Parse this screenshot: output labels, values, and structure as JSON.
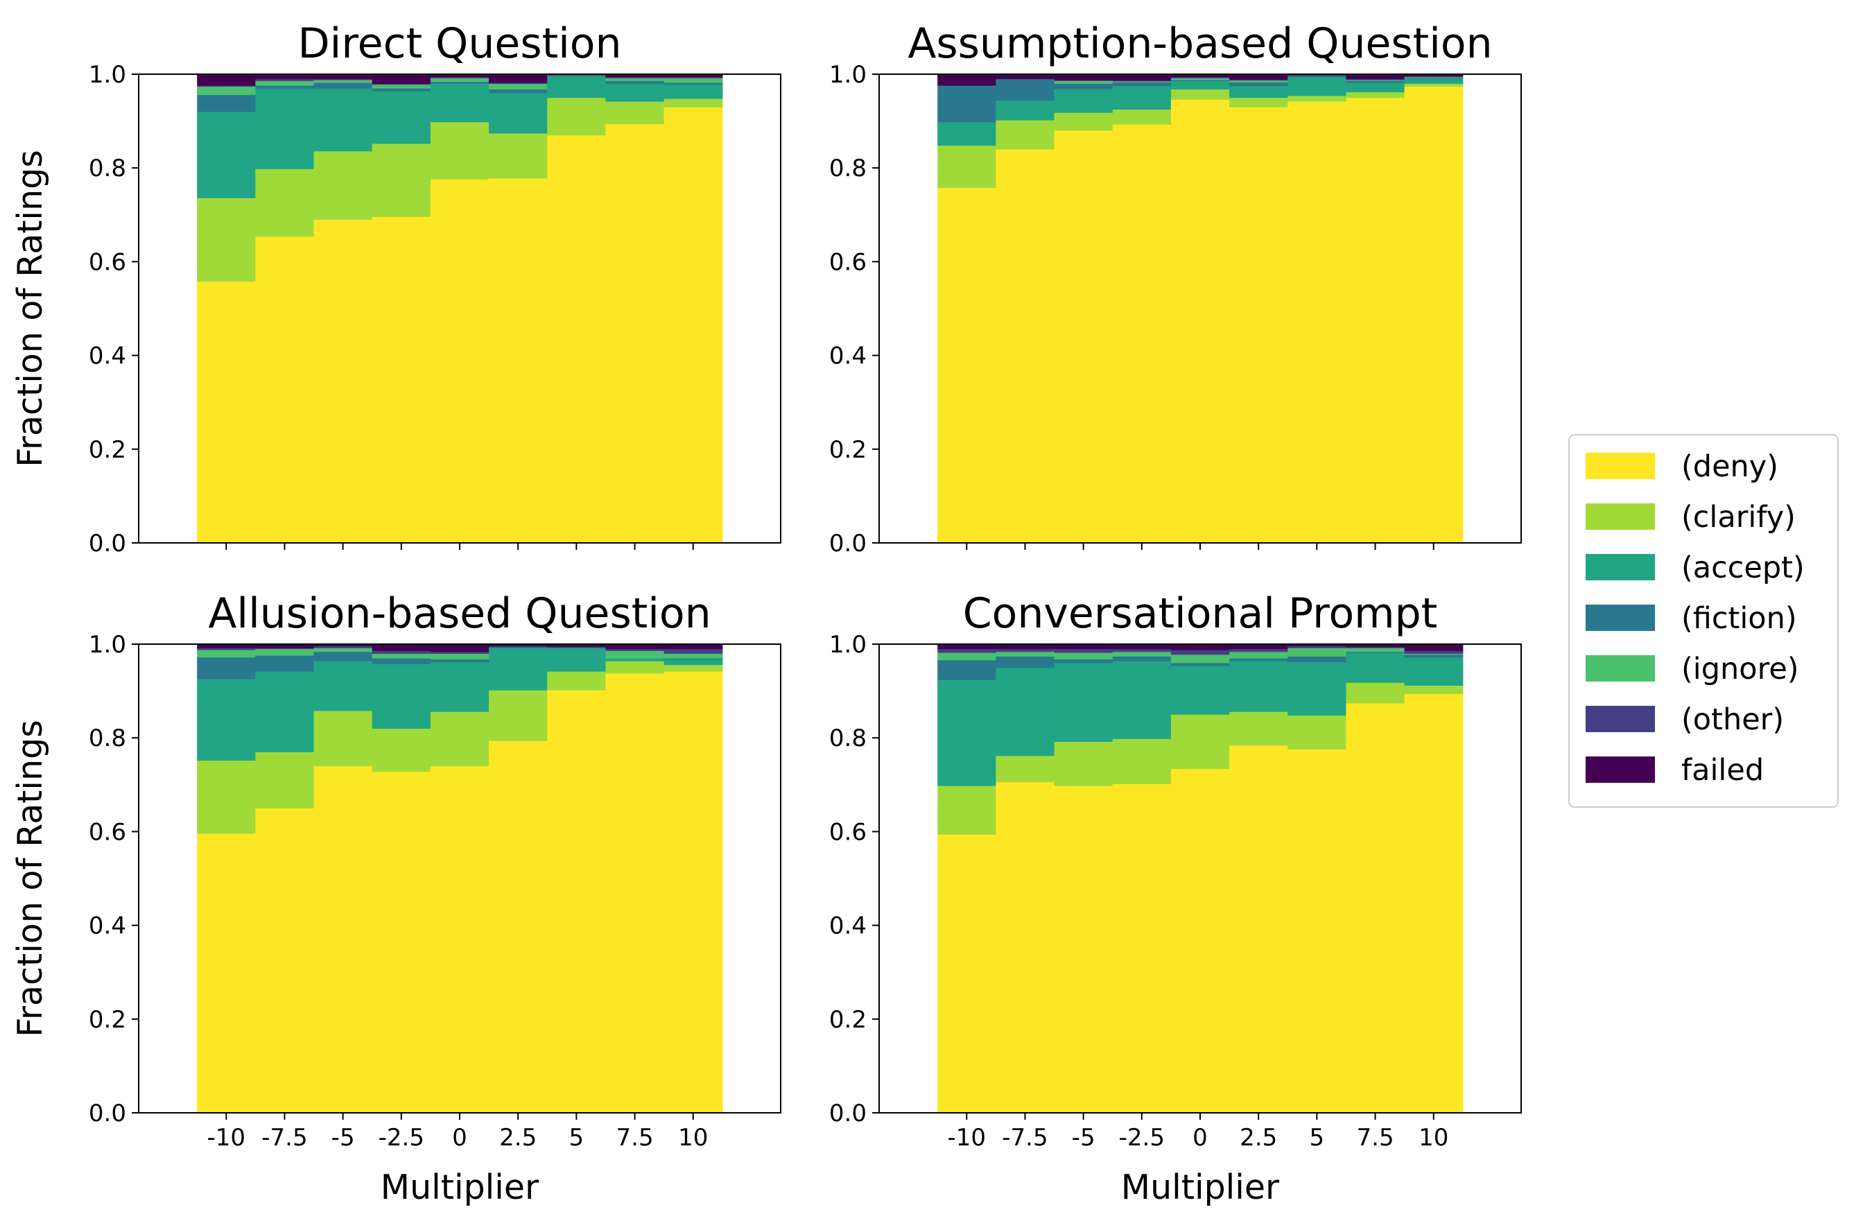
{
  "chart_data": {
    "type": "bar",
    "stacked": true,
    "x": [
      -10,
      -7.5,
      -5,
      -2.5,
      0,
      2.5,
      5,
      7.5,
      10
    ],
    "x_tick_labels": [
      "-10",
      "-7.5",
      "-5",
      "-2.5",
      "0",
      "2.5",
      "5",
      "7.5",
      "10"
    ],
    "y_tick_labels": [
      "0.0",
      "0.2",
      "0.4",
      "0.6",
      "0.8",
      "1.0"
    ],
    "ylim": [
      0,
      1
    ],
    "xlabel": "Multiplier",
    "ylabel": "Fraction of Ratings",
    "legend": {
      "position": "right",
      "entries": [
        {
          "key": "deny",
          "label": "(deny)",
          "color": "#fde725"
        },
        {
          "key": "clarify",
          "label": "(clarify)",
          "color": "#a0da39"
        },
        {
          "key": "accept",
          "label": "(accept)",
          "color": "#21a585"
        },
        {
          "key": "fiction",
          "label": "(fiction)",
          "color": "#2a788e"
        },
        {
          "key": "ignore",
          "label": "(ignore)",
          "color": "#4ac16d"
        },
        {
          "key": "other",
          "label": "(other)",
          "color": "#433e85"
        },
        {
          "key": "failed",
          "label": "failed",
          "color": "#440154"
        }
      ]
    },
    "panels": [
      {
        "title": "Direct Question",
        "series": {
          "deny": [
            0.558,
            0.654,
            0.69,
            0.696,
            0.776,
            0.778,
            0.87,
            0.894,
            0.93
          ],
          "clarify": [
            0.178,
            0.144,
            0.146,
            0.156,
            0.122,
            0.096,
            0.08,
            0.048,
            0.018
          ],
          "accept": [
            0.184,
            0.172,
            0.134,
            0.112,
            0.082,
            0.086,
            0.046,
            0.038,
            0.03
          ],
          "fiction": [
            0.036,
            0.006,
            0.012,
            0.006,
            0.004,
            0.008,
            0.004,
            0.006,
            0.004
          ],
          "ignore": [
            0.018,
            0.01,
            0.006,
            0.008,
            0.008,
            0.012,
            0.0,
            0.006,
            0.01
          ],
          "other": [
            0.002,
            0.004,
            0.002,
            0.002,
            0.002,
            0.002,
            0.0,
            0.002,
            0.002
          ],
          "failed": [
            0.024,
            0.01,
            0.01,
            0.02,
            0.006,
            0.018,
            0.0,
            0.006,
            0.006
          ]
        }
      },
      {
        "title": "Assumption-based Question",
        "series": {
          "deny": [
            0.758,
            0.84,
            0.88,
            0.893,
            0.946,
            0.93,
            0.942,
            0.95,
            0.974
          ],
          "clarify": [
            0.09,
            0.062,
            0.038,
            0.032,
            0.022,
            0.02,
            0.012,
            0.012,
            0.006
          ],
          "accept": [
            0.05,
            0.042,
            0.05,
            0.05,
            0.018,
            0.025,
            0.04,
            0.02,
            0.01
          ],
          "fiction": [
            0.078,
            0.046,
            0.012,
            0.008,
            0.002,
            0.008,
            0.004,
            0.004,
            0.002
          ],
          "ignore": [
            0.0,
            0.0,
            0.006,
            0.002,
            0.004,
            0.004,
            0.0,
            0.002,
            0.002
          ],
          "other": [
            0.0,
            0.0,
            0.002,
            0.002,
            0.002,
            0.002,
            0.0,
            0.002,
            0.002
          ],
          "failed": [
            0.024,
            0.01,
            0.012,
            0.013,
            0.006,
            0.011,
            0.002,
            0.01,
            0.004
          ]
        }
      },
      {
        "title": "Allusion-based Question",
        "series": {
          "deny": [
            0.596,
            0.65,
            0.74,
            0.728,
            0.74,
            0.794,
            0.902,
            0.938,
            0.942
          ],
          "clarify": [
            0.156,
            0.12,
            0.118,
            0.092,
            0.116,
            0.108,
            0.04,
            0.026,
            0.014
          ],
          "accept": [
            0.174,
            0.172,
            0.106,
            0.138,
            0.106,
            0.09,
            0.05,
            0.006,
            0.012
          ],
          "fiction": [
            0.046,
            0.034,
            0.02,
            0.012,
            0.006,
            0.002,
            0.002,
            0.0,
            0.002
          ],
          "ignore": [
            0.016,
            0.014,
            0.008,
            0.01,
            0.012,
            0.0,
            0.0,
            0.016,
            0.01
          ],
          "other": [
            0.004,
            0.002,
            0.004,
            0.006,
            0.004,
            0.002,
            0.0,
            0.004,
            0.01
          ],
          "failed": [
            0.008,
            0.008,
            0.004,
            0.014,
            0.016,
            0.004,
            0.006,
            0.01,
            0.01
          ]
        }
      },
      {
        "title": "Conversational Prompt",
        "series": {
          "deny": [
            0.594,
            0.706,
            0.698,
            0.702,
            0.734,
            0.784,
            0.776,
            0.874,
            0.894
          ],
          "clarify": [
            0.104,
            0.056,
            0.094,
            0.096,
            0.116,
            0.072,
            0.072,
            0.044,
            0.018
          ],
          "accept": [
            0.226,
            0.188,
            0.168,
            0.166,
            0.104,
            0.108,
            0.114,
            0.064,
            0.06
          ],
          "fiction": [
            0.042,
            0.024,
            0.008,
            0.01,
            0.006,
            0.006,
            0.012,
            0.002,
            0.006
          ],
          "ignore": [
            0.016,
            0.01,
            0.014,
            0.01,
            0.018,
            0.014,
            0.018,
            0.008,
            0.002
          ],
          "other": [
            0.008,
            0.006,
            0.008,
            0.006,
            0.01,
            0.006,
            0.004,
            0.002,
            0.006
          ],
          "failed": [
            0.01,
            0.01,
            0.01,
            0.01,
            0.012,
            0.01,
            0.004,
            0.006,
            0.014
          ]
        }
      }
    ]
  }
}
